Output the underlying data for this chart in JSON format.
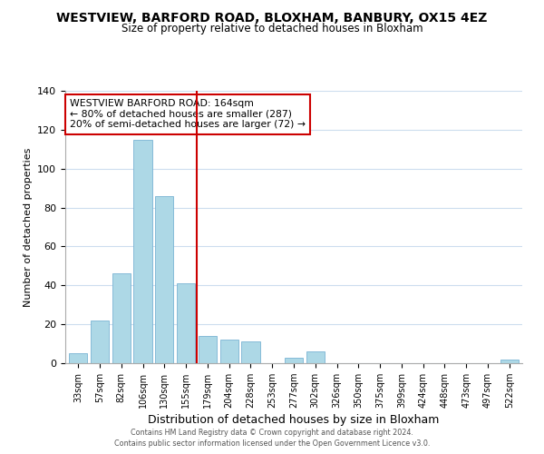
{
  "title": "WESTVIEW, BARFORD ROAD, BLOXHAM, BANBURY, OX15 4EZ",
  "subtitle": "Size of property relative to detached houses in Bloxham",
  "xlabel": "Distribution of detached houses by size in Bloxham",
  "ylabel": "Number of detached properties",
  "bar_labels": [
    "33sqm",
    "57sqm",
    "82sqm",
    "106sqm",
    "130sqm",
    "155sqm",
    "179sqm",
    "204sqm",
    "228sqm",
    "253sqm",
    "277sqm",
    "302sqm",
    "326sqm",
    "350sqm",
    "375sqm",
    "399sqm",
    "424sqm",
    "448sqm",
    "473sqm",
    "497sqm",
    "522sqm"
  ],
  "bar_heights": [
    5,
    22,
    46,
    115,
    86,
    41,
    14,
    12,
    11,
    0,
    3,
    6,
    0,
    0,
    0,
    0,
    0,
    0,
    0,
    0,
    2
  ],
  "bar_color": "#add8e6",
  "bar_edge_color": "#7ab3d4",
  "ylim": [
    0,
    140
  ],
  "yticks": [
    0,
    20,
    40,
    60,
    80,
    100,
    120,
    140
  ],
  "vline_x": 5.5,
  "vline_color": "#cc0000",
  "annotation_title": "WESTVIEW BARFORD ROAD: 164sqm",
  "annotation_line1": "← 80% of detached houses are smaller (287)",
  "annotation_line2": "20% of semi-detached houses are larger (72) →",
  "footer1": "Contains HM Land Registry data © Crown copyright and database right 2024.",
  "footer2": "Contains public sector information licensed under the Open Government Licence v3.0.",
  "background_color": "#ffffff",
  "grid_color": "#ccddee"
}
